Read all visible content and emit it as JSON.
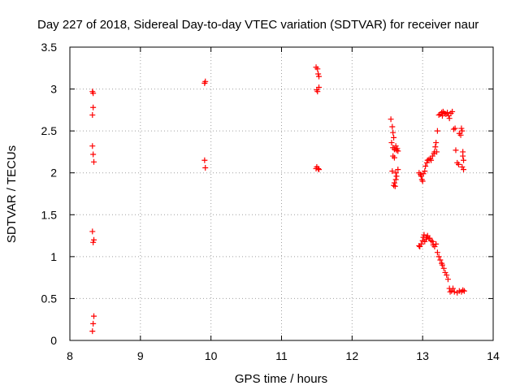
{
  "chart_data": {
    "type": "scatter",
    "title": "Day 227 of 2018, Sidereal Day-to-day VTEC variation (SDTVAR) for receiver naur",
    "xlabel": "GPS time / hours",
    "ylabel": "SDTVAR / TECUs",
    "xlim": [
      8,
      14
    ],
    "ylim": [
      0,
      3.5
    ],
    "xticks": [
      "8",
      "9",
      "10",
      "11",
      "12",
      "13",
      "14"
    ],
    "yticks": [
      "0",
      "0.5",
      "1",
      "1.5",
      "2",
      "2.5",
      "3",
      "3.5"
    ],
    "grid": true,
    "marker": "plus",
    "series": [
      {
        "name": "SDTVAR",
        "color": "#ff0000",
        "points": [
          [
            8.32,
            2.97
          ],
          [
            8.33,
            2.95
          ],
          [
            8.33,
            2.78
          ],
          [
            8.32,
            2.69
          ],
          [
            8.32,
            2.32
          ],
          [
            8.33,
            2.22
          ],
          [
            8.34,
            2.13
          ],
          [
            8.32,
            1.3
          ],
          [
            8.34,
            1.2
          ],
          [
            8.33,
            1.17
          ],
          [
            8.34,
            0.29
          ],
          [
            8.33,
            0.2
          ],
          [
            8.32,
            0.11
          ],
          [
            9.91,
            3.07
          ],
          [
            9.92,
            3.09
          ],
          [
            9.91,
            2.15
          ],
          [
            9.92,
            2.06
          ],
          [
            11.49,
            3.26
          ],
          [
            11.51,
            3.24
          ],
          [
            11.52,
            3.18
          ],
          [
            11.53,
            3.15
          ],
          [
            11.5,
            2.99
          ],
          [
            11.51,
            2.97
          ],
          [
            11.53,
            3.02
          ],
          [
            11.49,
            2.05
          ],
          [
            11.5,
            2.07
          ],
          [
            11.52,
            2.05
          ],
          [
            11.53,
            2.04
          ],
          [
            12.55,
            2.64
          ],
          [
            12.57,
            2.55
          ],
          [
            12.58,
            2.48
          ],
          [
            12.59,
            2.42
          ],
          [
            12.56,
            2.36
          ],
          [
            12.58,
            2.3
          ],
          [
            12.6,
            2.28
          ],
          [
            12.62,
            2.32
          ],
          [
            12.63,
            2.27
          ],
          [
            12.64,
            2.29
          ],
          [
            12.65,
            2.26
          ],
          [
            12.58,
            2.2
          ],
          [
            12.6,
            2.18
          ],
          [
            12.57,
            2.02
          ],
          [
            12.62,
            2.0
          ],
          [
            12.65,
            2.04
          ],
          [
            12.63,
            1.96
          ],
          [
            12.62,
            1.92
          ],
          [
            12.6,
            1.88
          ],
          [
            12.61,
            1.84
          ],
          [
            12.59,
            1.85
          ],
          [
            12.95,
            2.0
          ],
          [
            12.97,
            1.98
          ],
          [
            12.98,
            1.96
          ],
          [
            12.99,
            1.92
          ],
          [
            13.0,
            1.9
          ],
          [
            13.01,
            1.99
          ],
          [
            13.03,
            2.02
          ],
          [
            13.04,
            2.08
          ],
          [
            13.06,
            2.12
          ],
          [
            13.07,
            2.15
          ],
          [
            13.09,
            2.16
          ],
          [
            13.11,
            2.17
          ],
          [
            13.12,
            2.15
          ],
          [
            13.14,
            2.2
          ],
          [
            13.16,
            2.23
          ],
          [
            13.17,
            2.25
          ],
          [
            13.18,
            2.31
          ],
          [
            13.19,
            2.36
          ],
          [
            13.2,
            2.25
          ],
          [
            13.21,
            2.5
          ],
          [
            13.23,
            2.69
          ],
          [
            13.25,
            2.7
          ],
          [
            13.27,
            2.72
          ],
          [
            13.28,
            2.68
          ],
          [
            13.29,
            2.73
          ],
          [
            13.31,
            2.71
          ],
          [
            13.33,
            2.7
          ],
          [
            13.35,
            2.72
          ],
          [
            13.37,
            2.68
          ],
          [
            13.38,
            2.65
          ],
          [
            13.4,
            2.71
          ],
          [
            13.42,
            2.73
          ],
          [
            13.44,
            2.52
          ],
          [
            13.46,
            2.53
          ],
          [
            13.47,
            2.27
          ],
          [
            13.49,
            2.12
          ],
          [
            13.51,
            2.1
          ],
          [
            13.52,
            2.47
          ],
          [
            13.54,
            2.45
          ],
          [
            13.55,
            2.53
          ],
          [
            13.56,
            2.5
          ],
          [
            13.57,
            2.2
          ],
          [
            13.58,
            2.15
          ],
          [
            13.56,
            2.07
          ],
          [
            13.58,
            2.04
          ],
          [
            13.57,
            2.25
          ],
          [
            12.95,
            1.13
          ],
          [
            12.96,
            1.12
          ],
          [
            12.98,
            1.15
          ],
          [
            13.0,
            1.19
          ],
          [
            13.01,
            1.23
          ],
          [
            13.02,
            1.26
          ],
          [
            13.03,
            1.18
          ],
          [
            13.05,
            1.21
          ],
          [
            13.06,
            1.23
          ],
          [
            13.07,
            1.25
          ],
          [
            13.09,
            1.22
          ],
          [
            13.1,
            1.22
          ],
          [
            13.12,
            1.19
          ],
          [
            13.14,
            1.18
          ],
          [
            13.15,
            1.14
          ],
          [
            13.17,
            1.12
          ],
          [
            13.19,
            1.15
          ],
          [
            13.21,
            1.05
          ],
          [
            13.23,
            1.0
          ],
          [
            13.25,
            0.96
          ],
          [
            13.27,
            0.92
          ],
          [
            13.28,
            0.9
          ],
          [
            13.3,
            0.86
          ],
          [
            13.32,
            0.81
          ],
          [
            13.34,
            0.78
          ],
          [
            13.36,
            0.73
          ],
          [
            13.38,
            0.62
          ],
          [
            13.39,
            0.58
          ],
          [
            13.41,
            0.59
          ],
          [
            13.43,
            0.62
          ],
          [
            13.45,
            0.58
          ],
          [
            13.49,
            0.57
          ],
          [
            13.52,
            0.59
          ],
          [
            13.55,
            0.58
          ],
          [
            13.57,
            0.6
          ],
          [
            13.59,
            0.59
          ]
        ]
      }
    ]
  }
}
